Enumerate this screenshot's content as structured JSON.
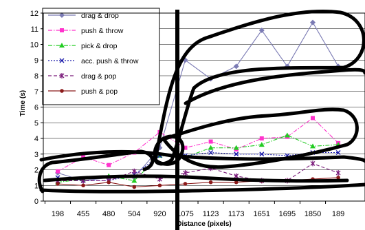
{
  "chart_data": {
    "type": "line",
    "title": "",
    "xlabel": "Distance (pixels)",
    "ylabel": "Time (s)",
    "ylim": [
      0,
      12
    ],
    "yticks": [
      0,
      1,
      2,
      3,
      4,
      5,
      6,
      7,
      8,
      9,
      10,
      11,
      12
    ],
    "categories": [
      "198",
      "455",
      "480",
      "504",
      "920",
      "1075",
      "1123",
      "1173",
      "1651",
      "1695",
      "1850",
      "189"
    ],
    "legend_position": "top-left",
    "grid": "horizontal",
    "series": [
      {
        "name": "drag & drop",
        "color": "#7b7bb4",
        "dash": "solid",
        "marker": "diamond",
        "values": [
          1.8,
          1.3,
          1.5,
          1.5,
          3.4,
          9.0,
          7.8,
          8.6,
          10.9,
          8.6,
          11.4,
          8.6
        ]
      },
      {
        "name": "push & throw",
        "color": "#ff33cc",
        "dash": "dashdot",
        "marker": "square",
        "values": [
          1.9,
          2.8,
          2.3,
          3.1,
          4.4,
          3.4,
          3.8,
          3.3,
          4.0,
          4.1,
          5.3,
          3.7
        ]
      },
      {
        "name": "pick & drop",
        "color": "#22cc22",
        "dash": "dashdot",
        "marker": "triangle",
        "values": [
          1.2,
          1.4,
          1.6,
          1.3,
          2.9,
          2.8,
          3.4,
          3.4,
          3.6,
          4.2,
          3.5,
          3.6
        ]
      },
      {
        "name": "acc. push & throw",
        "color": "#1a1aaa",
        "dash": "dotted",
        "marker": "x",
        "values": [
          1.5,
          1.3,
          1.3,
          1.7,
          2.9,
          2.9,
          3.1,
          3.0,
          3.0,
          2.9,
          3.1,
          3.1
        ]
      },
      {
        "name": "drag & pop",
        "color": "#7a1a7a",
        "dash": "dashed",
        "marker": "star",
        "values": [
          1.3,
          1.3,
          1.3,
          1.9,
          1.4,
          1.8,
          2.1,
          1.6,
          1.3,
          1.3,
          2.4,
          1.8
        ]
      },
      {
        "name": "push & pop",
        "color": "#8b1a1a",
        "dash": "solid",
        "marker": "circle",
        "values": [
          1.1,
          1.0,
          1.2,
          0.9,
          1.0,
          1.1,
          1.2,
          1.2,
          1.3,
          1.3,
          1.4,
          1.5
        ]
      }
    ]
  }
}
